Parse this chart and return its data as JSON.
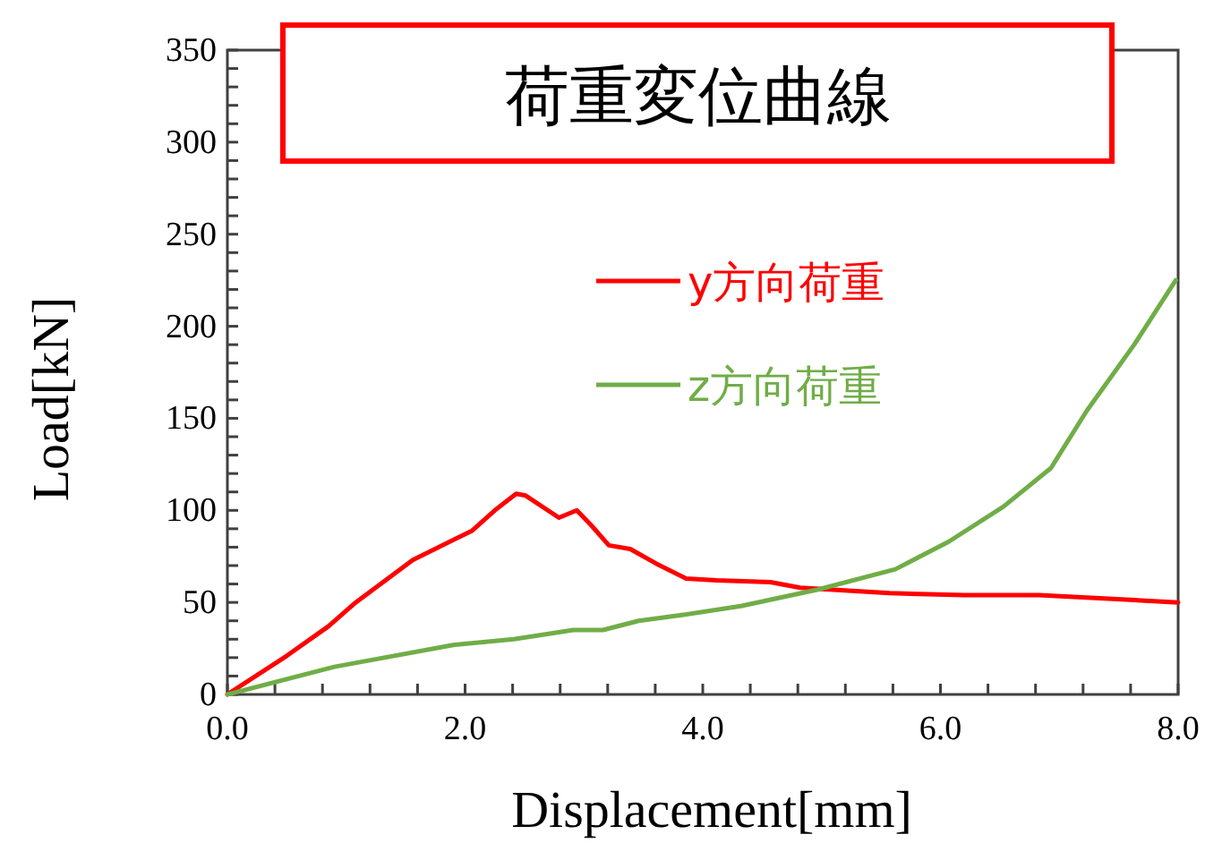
{
  "chart_data": {
    "type": "line",
    "title": "荷重変位曲線",
    "xlabel": "Displacement[mm]",
    "ylabel": "Load[kN]",
    "xlim": [
      0,
      8
    ],
    "ylim": [
      0,
      350
    ],
    "xticks": [
      {
        "value": 0,
        "label": "0.0"
      },
      {
        "value": 0.4,
        "label": null
      },
      {
        "value": 0.8,
        "label": null
      },
      {
        "value": 1.2,
        "label": null
      },
      {
        "value": 1.6,
        "label": null
      },
      {
        "value": 2,
        "label": "2.0"
      },
      {
        "value": 2.4,
        "label": null
      },
      {
        "value": 2.8,
        "label": null
      },
      {
        "value": 3.2,
        "label": null
      },
      {
        "value": 3.6,
        "label": null
      },
      {
        "value": 4,
        "label": "4.0"
      },
      {
        "value": 4.4,
        "label": null
      },
      {
        "value": 4.8,
        "label": null
      },
      {
        "value": 5.2,
        "label": null
      },
      {
        "value": 5.6,
        "label": null
      },
      {
        "value": 6,
        "label": "6.0"
      },
      {
        "value": 6.4,
        "label": null
      },
      {
        "value": 6.8,
        "label": null
      },
      {
        "value": 7.2,
        "label": null
      },
      {
        "value": 7.6,
        "label": null
      },
      {
        "value": 8,
        "label": "8.0"
      }
    ],
    "yticks": [
      0,
      {
        "value": 10,
        "label": null
      },
      {
        "value": 20,
        "label": null
      },
      {
        "value": 30,
        "label": null
      },
      {
        "value": 40,
        "label": null
      },
      50,
      {
        "value": 60,
        "label": null
      },
      {
        "value": 70,
        "label": null
      },
      {
        "value": 80,
        "label": null
      },
      {
        "value": 90,
        "label": null
      },
      100,
      {
        "value": 110,
        "label": null
      },
      {
        "value": 120,
        "label": null
      },
      {
        "value": 130,
        "label": null
      },
      {
        "value": 140,
        "label": null
      },
      150,
      {
        "value": 160,
        "label": null
      },
      {
        "value": 170,
        "label": null
      },
      {
        "value": 180,
        "label": null
      },
      {
        "value": 190,
        "label": null
      },
      200,
      {
        "value": 210,
        "label": null
      },
      {
        "value": 220,
        "label": null
      },
      {
        "value": 230,
        "label": null
      },
      {
        "value": 240,
        "label": null
      },
      250,
      {
        "value": 260,
        "label": null
      },
      {
        "value": 270,
        "label": null
      },
      {
        "value": 280,
        "label": null
      },
      {
        "value": 290,
        "label": null
      },
      300,
      {
        "value": 310,
        "label": null
      },
      {
        "value": 320,
        "label": null
      },
      {
        "value": 330,
        "label": null
      },
      {
        "value": 340,
        "label": null
      },
      350
    ],
    "grid": false,
    "legend": "top right",
    "marker": "none",
    "line_style": "solid",
    "series": [
      {
        "name": "y方向荷重",
        "color": "#ff0000",
        "x": [
          0,
          0.5,
          0.85,
          1.08,
          1.56,
          2.06,
          2.25,
          2.43,
          2.51,
          2.79,
          2.94,
          3.06,
          3.21,
          3.39,
          3.61,
          3.86,
          4.12,
          4.57,
          4.82,
          5.57,
          6.2,
          6.83,
          8
        ],
        "values": [
          0,
          21,
          37,
          50,
          73,
          89,
          100,
          109,
          108,
          96,
          100,
          92,
          81,
          79,
          71,
          63,
          62,
          61,
          58,
          55,
          54,
          54,
          50
        ]
      },
      {
        "name": "z方向荷重",
        "color": "#70ad47",
        "x": [
          0,
          0.9,
          1.91,
          2.41,
          2.91,
          3.16,
          3.46,
          3.81,
          4.32,
          4.97,
          5.62,
          6.07,
          6.53,
          6.93,
          7.23,
          7.63,
          7.98
        ],
        "values": [
          0,
          15,
          27,
          30,
          35,
          35,
          40,
          43,
          48,
          57,
          68,
          83,
          102,
          123,
          154,
          190,
          225
        ]
      }
    ]
  }
}
